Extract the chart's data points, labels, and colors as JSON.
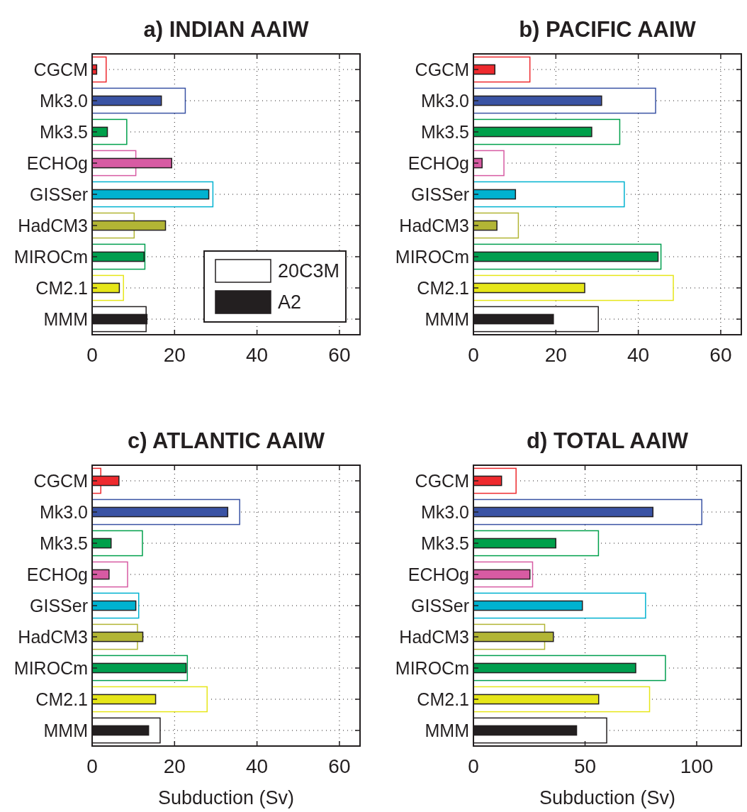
{
  "chart_data": [
    {
      "type": "bar",
      "orientation": "horizontal",
      "title": "a) INDIAN AAIW",
      "categories": [
        "CGCM",
        "Mk3.0",
        "Mk3.5",
        "ECHOg",
        "GISSer",
        "HadCM3",
        "MIROCm",
        "CM2.1",
        "MMM"
      ],
      "series": [
        {
          "name": "20C3M",
          "color": "#ffffff",
          "colors": [
            "#ee2a2e",
            "#3a53a4",
            "#00a04b",
            "#d75ba3",
            "#00b2d0",
            "#b2b535",
            "#009e4f",
            "#e6e619",
            "#231f20"
          ],
          "values": [
            3.4,
            22.6,
            8.4,
            10.6,
            29.3,
            10.2,
            12.8,
            7.6,
            13.1
          ]
        },
        {
          "name": "A2",
          "color": "#231f20",
          "colors": [
            "#ee2a2e",
            "#3a53a4",
            "#00a04b",
            "#d75ba3",
            "#00b2d0",
            "#b2b535",
            "#009e4f",
            "#e6e619",
            "#231f20"
          ],
          "values": [
            1.1,
            16.8,
            3.7,
            19.3,
            28.3,
            17.8,
            12.6,
            6.6,
            13.3
          ]
        }
      ],
      "xlim": [
        0,
        65
      ],
      "xticks": [
        0,
        20,
        40,
        60
      ],
      "grid": true,
      "legend": "bottom right"
    },
    {
      "type": "bar",
      "orientation": "horizontal",
      "title": "b) PACIFIC AAIW",
      "categories": [
        "CGCM",
        "Mk3.0",
        "Mk3.5",
        "ECHOg",
        "GISSer",
        "HadCM3",
        "MIROCm",
        "CM2.1",
        "MMM"
      ],
      "series": [
        {
          "color": "#ffffff",
          "colors": [
            "#ee2a2e",
            "#3a53a4",
            "#00a04b",
            "#d75ba3",
            "#00b2d0",
            "#b2b535",
            "#009e4f",
            "#e6e619",
            "#231f20"
          ],
          "values": [
            13.7,
            44.2,
            35.5,
            7.4,
            36.6,
            10.9,
            45.5,
            48.5,
            30.3
          ]
        },
        {
          "colors": [
            "#ee2a2e",
            "#3a53a4",
            "#00a04b",
            "#d75ba3",
            "#00b2d0",
            "#b2b535",
            "#009e4f",
            "#e6e619",
            "#231f20"
          ],
          "values": [
            5.2,
            31.1,
            28.7,
            2.1,
            10.2,
            5.7,
            44.8,
            27.0,
            19.4
          ]
        }
      ],
      "xlim": [
        0,
        65
      ],
      "xticks": [
        0,
        20,
        40,
        60
      ],
      "grid": true
    },
    {
      "type": "bar",
      "orientation": "horizontal",
      "title": "c) ATLANTIC AAIW",
      "xlabel": "Subduction (Sv)",
      "categories": [
        "CGCM",
        "Mk3.0",
        "Mk3.5",
        "ECHOg",
        "GISSer",
        "HadCM3",
        "MIROCm",
        "CM2.1",
        "MMM"
      ],
      "series": [
        {
          "color": "#ffffff",
          "colors": [
            "#ee2a2e",
            "#3a53a4",
            "#00a04b",
            "#d75ba3",
            "#00b2d0",
            "#b2b535",
            "#009e4f",
            "#e6e619",
            "#231f20"
          ],
          "values": [
            2.1,
            35.8,
            12.2,
            8.6,
            11.3,
            11.0,
            23.1,
            27.9,
            16.5
          ]
        },
        {
          "colors": [
            "#ee2a2e",
            "#3a53a4",
            "#00a04b",
            "#d75ba3",
            "#00b2d0",
            "#b2b535",
            "#009e4f",
            "#e6e619",
            "#231f20"
          ],
          "values": [
            6.5,
            32.9,
            4.6,
            4.1,
            10.6,
            12.3,
            22.8,
            15.4,
            13.7
          ]
        }
      ],
      "xlim": [
        0,
        65
      ],
      "xticks": [
        0,
        20,
        40,
        60
      ],
      "grid": true
    },
    {
      "type": "bar",
      "orientation": "horizontal",
      "title": "d) TOTAL AAIW",
      "xlabel": "Subduction (Sv)",
      "categories": [
        "CGCM",
        "Mk3.0",
        "Mk3.5",
        "ECHOg",
        "GISSer",
        "HadCM3",
        "MIROCm",
        "CM2.1",
        "MMM"
      ],
      "series": [
        {
          "color": "#ffffff",
          "colors": [
            "#ee2a2e",
            "#3a53a4",
            "#00a04b",
            "#d75ba3",
            "#00b2d0",
            "#b2b535",
            "#009e4f",
            "#e6e619",
            "#231f20"
          ],
          "values": [
            19.1,
            102.3,
            56.0,
            26.5,
            77.1,
            31.9,
            86.0,
            78.9,
            59.7
          ]
        },
        {
          "colors": [
            "#ee2a2e",
            "#3a53a4",
            "#00a04b",
            "#d75ba3",
            "#00b2d0",
            "#b2b535",
            "#009e4f",
            "#e6e619",
            "#231f20"
          ],
          "values": [
            12.6,
            80.4,
            36.9,
            25.3,
            48.8,
            35.8,
            72.7,
            56.1,
            46.2
          ]
        }
      ],
      "xlim": [
        0,
        120
      ],
      "xticks": [
        0,
        50,
        100
      ],
      "grid": true
    }
  ]
}
